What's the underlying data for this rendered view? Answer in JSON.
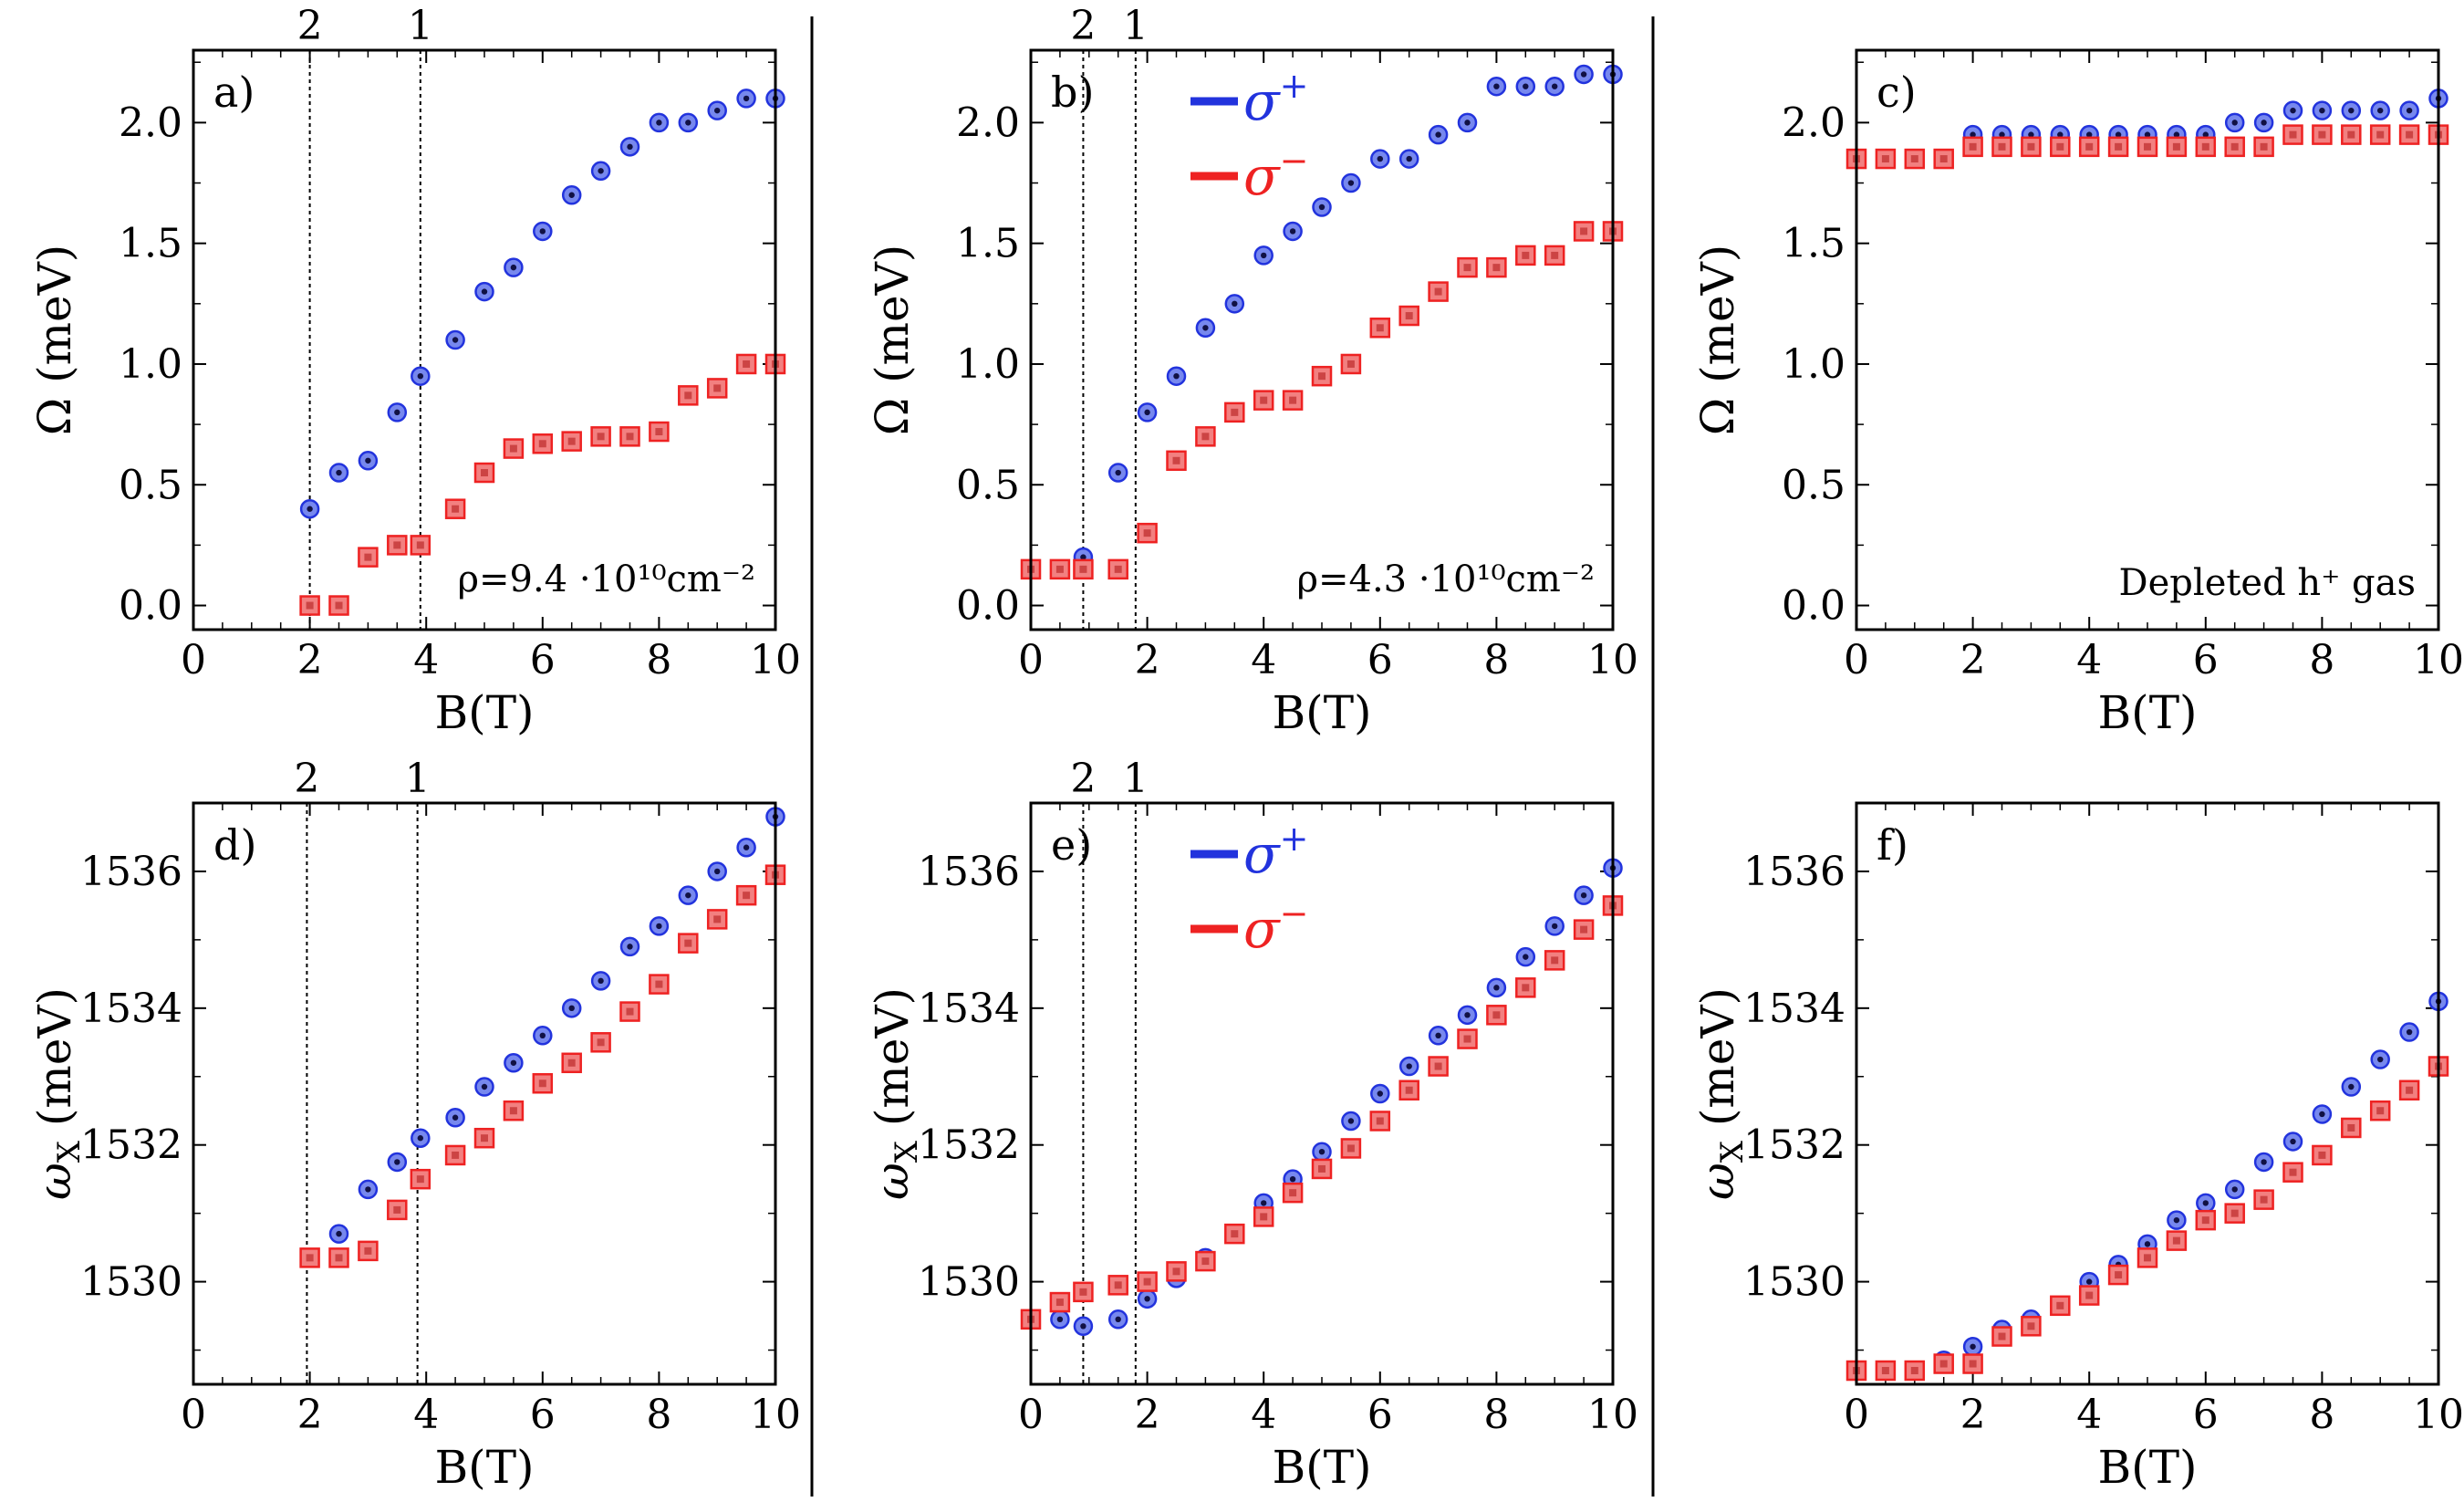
{
  "figure": {
    "colors": {
      "sigma_plus": "#2233dd",
      "sigma_minus": "#ee2222"
    },
    "legend": {
      "plus": "σ",
      "plus_sup": "+",
      "minus": "σ",
      "minus_sup": "−"
    },
    "filling_factor_labels": [
      "2",
      "1"
    ]
  },
  "chart_data": [
    {
      "id": "a",
      "type": "scatter",
      "panel_label": "a)",
      "xlabel": "B(T)",
      "ylabel": "Ω (meV)",
      "xlim": [
        0,
        10
      ],
      "ylim": [
        -0.1,
        2.3
      ],
      "xticks": [
        0,
        2,
        4,
        6,
        8,
        10
      ],
      "yticks": [
        0.0,
        0.5,
        1.0,
        1.5,
        2.0
      ],
      "ytick_labels": [
        "0.0",
        "0.5",
        "1.0",
        "1.5",
        "2.0"
      ],
      "vlines": [
        {
          "x": 2.0,
          "label": "2"
        },
        {
          "x": 3.9,
          "label": "1"
        }
      ],
      "annotation": "ρ=9.4 ·10¹⁰cm⁻²",
      "series": [
        {
          "name": "σ+",
          "x": [
            2,
            2.5,
            3,
            3.5,
            3.9,
            4.5,
            5,
            5.5,
            6,
            6.5,
            7,
            7.5,
            8,
            8.5,
            9,
            9.5,
            10
          ],
          "y": [
            0.4,
            0.55,
            0.6,
            0.8,
            0.95,
            1.1,
            1.3,
            1.4,
            1.55,
            1.7,
            1.8,
            1.9,
            2.0,
            2.0,
            2.05,
            2.1,
            2.1
          ]
        },
        {
          "name": "σ−",
          "x": [
            2,
            2.5,
            3,
            3.5,
            3.9,
            4.5,
            5,
            5.5,
            6,
            6.5,
            7,
            7.5,
            8,
            8.5,
            9,
            9.5,
            10
          ],
          "y": [
            0.0,
            0.0,
            0.2,
            0.25,
            0.25,
            0.4,
            0.55,
            0.65,
            0.67,
            0.68,
            0.7,
            0.7,
            0.72,
            0.87,
            0.9,
            1.0,
            1.0
          ]
        }
      ]
    },
    {
      "id": "b",
      "type": "scatter",
      "panel_label": "b)",
      "xlabel": "B(T)",
      "ylabel": "Ω (meV)",
      "xlim": [
        0,
        10
      ],
      "ylim": [
        -0.1,
        2.3
      ],
      "xticks": [
        0,
        2,
        4,
        6,
        8,
        10
      ],
      "yticks": [
        0.0,
        0.5,
        1.0,
        1.5,
        2.0
      ],
      "ytick_labels": [
        "0.0",
        "0.5",
        "1.0",
        "1.5",
        "2.0"
      ],
      "vlines": [
        {
          "x": 0.9,
          "label": "2"
        },
        {
          "x": 1.8,
          "label": "1"
        }
      ],
      "annotation": "ρ=4.3 ·10¹⁰cm⁻²",
      "legend": true,
      "series": [
        {
          "name": "σ+",
          "x": [
            0.9,
            1.5,
            2,
            2.5,
            3,
            3.5,
            4,
            4.5,
            5,
            5.5,
            6,
            6.5,
            7,
            7.5,
            8,
            8.5,
            9,
            9.5,
            10
          ],
          "y": [
            0.2,
            0.55,
            0.8,
            0.95,
            1.15,
            1.25,
            1.45,
            1.55,
            1.65,
            1.75,
            1.85,
            1.85,
            1.95,
            2.0,
            2.15,
            2.15,
            2.15,
            2.2,
            2.2
          ]
        },
        {
          "name": "σ−",
          "x": [
            0,
            0.5,
            0.9,
            1.5,
            2,
            2.5,
            3,
            3.5,
            4,
            4.5,
            5,
            5.5,
            6,
            6.5,
            7,
            7.5,
            8,
            8.5,
            9,
            9.5,
            10
          ],
          "y": [
            0.15,
            0.15,
            0.15,
            0.15,
            0.3,
            0.6,
            0.7,
            0.8,
            0.85,
            0.85,
            0.95,
            1.0,
            1.15,
            1.2,
            1.3,
            1.4,
            1.4,
            1.45,
            1.45,
            1.55,
            1.55
          ]
        }
      ]
    },
    {
      "id": "c",
      "type": "scatter",
      "panel_label": "c)",
      "xlabel": "B(T)",
      "ylabel": "Ω (meV)",
      "xlim": [
        0,
        10
      ],
      "ylim": [
        -0.1,
        2.3
      ],
      "xticks": [
        0,
        2,
        4,
        6,
        8,
        10
      ],
      "yticks": [
        0.0,
        0.5,
        1.0,
        1.5,
        2.0
      ],
      "ytick_labels": [
        "0.0",
        "0.5",
        "1.0",
        "1.5",
        "2.0"
      ],
      "vlines": [],
      "annotation": "Depleted h⁺ gas",
      "series": [
        {
          "name": "σ+",
          "x": [
            2,
            2.5,
            3,
            3.5,
            4,
            4.5,
            5,
            5.5,
            6,
            6.5,
            7,
            7.5,
            8,
            8.5,
            9,
            9.5,
            10
          ],
          "y": [
            1.95,
            1.95,
            1.95,
            1.95,
            1.95,
            1.95,
            1.95,
            1.95,
            1.95,
            2.0,
            2.0,
            2.05,
            2.05,
            2.05,
            2.05,
            2.05,
            2.1
          ]
        },
        {
          "name": "σ−",
          "x": [
            0,
            0.5,
            1,
            1.5,
            2,
            2.5,
            3,
            3.5,
            4,
            4.5,
            5,
            5.5,
            6,
            6.5,
            7,
            7.5,
            8,
            8.5,
            9,
            9.5,
            10
          ],
          "y": [
            1.85,
            1.85,
            1.85,
            1.85,
            1.9,
            1.9,
            1.9,
            1.9,
            1.9,
            1.9,
            1.9,
            1.9,
            1.9,
            1.9,
            1.9,
            1.95,
            1.95,
            1.95,
            1.95,
            1.95,
            1.95
          ]
        }
      ]
    },
    {
      "id": "d",
      "type": "scatter",
      "panel_label": "d)",
      "xlabel": "B(T)",
      "ylabel": "ω",
      "ylabel_sub": "X",
      "ylabel_unit": " (meV)",
      "xlim": [
        0,
        10
      ],
      "ylim": [
        1528.5,
        1537.0
      ],
      "xticks": [
        0,
        2,
        4,
        6,
        8,
        10
      ],
      "yticks": [
        1530,
        1532,
        1534,
        1536
      ],
      "ytick_labels": [
        "1530",
        "1532",
        "1534",
        "1536"
      ],
      "vlines": [
        {
          "x": 1.95,
          "label": "2"
        },
        {
          "x": 3.85,
          "label": "1"
        }
      ],
      "annotation": "",
      "series": [
        {
          "name": "σ+",
          "x": [
            2,
            2.5,
            3,
            3.5,
            3.9,
            4.5,
            5,
            5.5,
            6,
            6.5,
            7,
            7.5,
            8,
            8.5,
            9,
            9.5,
            10
          ],
          "y": [
            1530.35,
            1530.7,
            1531.35,
            1531.75,
            1532.1,
            1532.4,
            1532.85,
            1533.2,
            1533.6,
            1534.0,
            1534.4,
            1534.9,
            1535.2,
            1535.65,
            1536.0,
            1536.35,
            1536.8
          ]
        },
        {
          "name": "σ−",
          "x": [
            2,
            2.5,
            3,
            3.5,
            3.9,
            4.5,
            5,
            5.5,
            6,
            6.5,
            7,
            7.5,
            8,
            8.5,
            9,
            9.5,
            10
          ],
          "y": [
            1530.35,
            1530.35,
            1530.45,
            1531.05,
            1531.5,
            1531.85,
            1532.1,
            1532.5,
            1532.9,
            1533.2,
            1533.5,
            1533.95,
            1534.35,
            1534.95,
            1535.3,
            1535.65,
            1535.95
          ]
        }
      ]
    },
    {
      "id": "e",
      "type": "scatter",
      "panel_label": "e)",
      "xlabel": "B(T)",
      "ylabel": "ω",
      "ylabel_sub": "X",
      "ylabel_unit": " (meV)",
      "xlim": [
        0,
        10
      ],
      "ylim": [
        1528.5,
        1537.0
      ],
      "xticks": [
        0,
        2,
        4,
        6,
        8,
        10
      ],
      "yticks": [
        1530,
        1532,
        1534,
        1536
      ],
      "ytick_labels": [
        "1530",
        "1532",
        "1534",
        "1536"
      ],
      "vlines": [
        {
          "x": 0.9,
          "label": "2"
        },
        {
          "x": 1.8,
          "label": "1"
        }
      ],
      "annotation": "",
      "legend": true,
      "series": [
        {
          "name": "σ+",
          "x": [
            0,
            0.5,
            0.9,
            1.5,
            2,
            2.5,
            3,
            3.5,
            4,
            4.5,
            5,
            5.5,
            6,
            6.5,
            7,
            7.5,
            8,
            8.5,
            9,
            9.5,
            10
          ],
          "y": [
            1529.45,
            1529.45,
            1529.35,
            1529.45,
            1529.75,
            1530.05,
            1530.35,
            1530.7,
            1531.15,
            1531.5,
            1531.9,
            1532.35,
            1532.75,
            1533.15,
            1533.6,
            1533.9,
            1534.3,
            1534.75,
            1535.2,
            1535.65,
            1536.05
          ]
        },
        {
          "name": "σ−",
          "x": [
            0,
            0.5,
            0.9,
            1.5,
            2,
            2.5,
            3,
            3.5,
            4,
            4.5,
            5,
            5.5,
            6,
            6.5,
            7,
            7.5,
            8,
            8.5,
            9,
            9.5,
            10
          ],
          "y": [
            1529.45,
            1529.7,
            1529.85,
            1529.95,
            1530.0,
            1530.15,
            1530.3,
            1530.7,
            1530.95,
            1531.3,
            1531.65,
            1531.95,
            1532.35,
            1532.8,
            1533.15,
            1533.55,
            1533.9,
            1534.3,
            1534.7,
            1535.15,
            1535.5
          ]
        }
      ]
    },
    {
      "id": "f",
      "type": "scatter",
      "panel_label": "f)",
      "xlabel": "B(T)",
      "ylabel": "ω",
      "ylabel_sub": "X",
      "ylabel_unit": " (meV)",
      "xlim": [
        0,
        10
      ],
      "ylim": [
        1528.5,
        1537.0
      ],
      "xticks": [
        0,
        2,
        4,
        6,
        8,
        10
      ],
      "yticks": [
        1530,
        1532,
        1534,
        1536
      ],
      "ytick_labels": [
        "1530",
        "1532",
        "1534",
        "1536"
      ],
      "vlines": [],
      "annotation": "",
      "series": [
        {
          "name": "σ+",
          "x": [
            0,
            0.5,
            1,
            1.5,
            2,
            2.5,
            3,
            3.5,
            4,
            4.5,
            5,
            5.5,
            6,
            6.5,
            7,
            7.5,
            8,
            8.5,
            9,
            9.5,
            10
          ],
          "y": [
            1528.7,
            1528.7,
            1528.7,
            1528.85,
            1529.05,
            1529.3,
            1529.45,
            1529.65,
            1530.0,
            1530.25,
            1530.55,
            1530.9,
            1531.15,
            1531.35,
            1531.75,
            1532.05,
            1532.45,
            1532.85,
            1533.25,
            1533.65,
            1534.1
          ]
        },
        {
          "name": "σ−",
          "x": [
            0,
            0.5,
            1,
            1.5,
            2,
            2.5,
            3,
            3.5,
            4,
            4.5,
            5,
            5.5,
            6,
            6.5,
            7,
            7.5,
            8,
            8.5,
            9,
            9.5,
            10
          ],
          "y": [
            1528.7,
            1528.7,
            1528.7,
            1528.8,
            1528.8,
            1529.2,
            1529.35,
            1529.65,
            1529.8,
            1530.1,
            1530.35,
            1530.6,
            1530.9,
            1531.0,
            1531.2,
            1531.6,
            1531.85,
            1532.25,
            1532.5,
            1532.8,
            1533.15
          ]
        }
      ]
    }
  ]
}
